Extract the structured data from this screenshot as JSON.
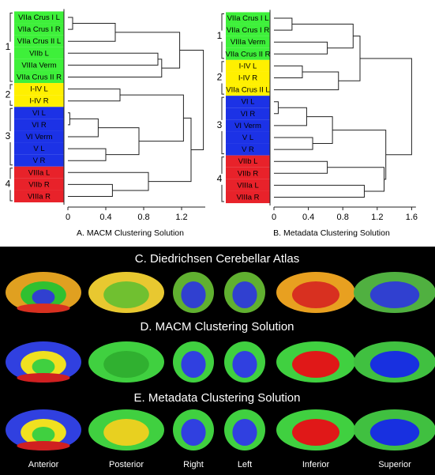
{
  "panels": [
    {
      "caption": "A. MACM Clustering Solution",
      "xlim": [
        0,
        1.45
      ],
      "xticks": [
        0,
        0.4,
        0.8,
        1.2
      ],
      "tree": {
        "height": 1.43,
        "children": [
          {
            "group": "1",
            "height": 1.18,
            "children": [
              {
                "height": 0.5,
                "children": [
                  {
                    "height": 0.05,
                    "children": [
                      {
                        "label": "VIIa Crus I L",
                        "color": "#3ef03a"
                      },
                      {
                        "label": "VIIa Crus I R",
                        "color": "#3ef03a"
                      }
                    ]
                  },
                  {
                    "label": "VIIa Crus II L",
                    "color": "#3ef03a"
                  }
                ]
              },
              {
                "height": 0.99,
                "children": [
                  {
                    "height": 0.95,
                    "children": [
                      {
                        "label": "VIIb L",
                        "color": "#3ef03a"
                      },
                      {
                        "label": "VIIIa Verm",
                        "color": "#3ef03a"
                      }
                    ]
                  },
                  {
                    "label": "VIIa Crus II R",
                    "color": "#3ef03a"
                  }
                ]
              }
            ]
          },
          {
            "height": 1.3,
            "children": [
              {
                "height": 1.22,
                "children": [
                  {
                    "group": "2",
                    "height": 0.55,
                    "children": [
                      {
                        "label": "I-IV L",
                        "color": "#fff000"
                      },
                      {
                        "label": "I-IV R",
                        "color": "#fff000"
                      }
                    ]
                  },
                  {
                    "group": "3",
                    "height": 0.75,
                    "children": [
                      {
                        "height": 0.32,
                        "children": [
                          {
                            "height": 0.02,
                            "children": [
                              {
                                "label": "VI L",
                                "color": "#1c32e6"
                              },
                              {
                                "label": "VI R",
                                "color": "#1c32e6"
                              }
                            ]
                          },
                          {
                            "label": "VI Verm",
                            "color": "#1c32e6"
                          }
                        ]
                      },
                      {
                        "height": 0.4,
                        "children": [
                          {
                            "label": "V L",
                            "color": "#1c32e6"
                          },
                          {
                            "label": "V R",
                            "color": "#1c32e6"
                          }
                        ]
                      }
                    ]
                  }
                ]
              },
              {
                "group": "4",
                "height": 0.85,
                "children": [
                  {
                    "label": "VIIIa L",
                    "color": "#e8222a"
                  },
                  {
                    "height": 0.47,
                    "children": [
                      {
                        "label": "VIIb R",
                        "color": "#e8222a"
                      },
                      {
                        "label": "VIIIa R",
                        "color": "#e8222a"
                      }
                    ]
                  }
                ]
              }
            ]
          }
        ]
      }
    },
    {
      "caption": "B. Metadata Clustering Solution",
      "xlim": [
        0,
        1.65
      ],
      "xticks": [
        0,
        0.4,
        0.8,
        1.2,
        1.6
      ],
      "tree": {
        "height": 1.6,
        "children": [
          {
            "height": 1.0,
            "children": [
              {
                "group": "1",
                "height": 0.92,
                "children": [
                  {
                    "height": 0.21,
                    "children": [
                      {
                        "label": "VIIa Crus I L",
                        "color": "#3ef03a"
                      },
                      {
                        "label": "VIIa Crus I R",
                        "color": "#3ef03a"
                      }
                    ]
                  },
                  {
                    "height": 0.62,
                    "children": [
                      {
                        "label": "VIIIa Verm",
                        "color": "#3ef03a"
                      },
                      {
                        "label": "VIIa Crus II R",
                        "color": "#3ef03a"
                      }
                    ]
                  }
                ]
              },
              {
                "group": "2",
                "height": 0.75,
                "children": [
                  {
                    "height": 0.33,
                    "children": [
                      {
                        "label": "I-IV L",
                        "color": "#fff000"
                      },
                      {
                        "label": "I-IV R",
                        "color": "#fff000"
                      }
                    ]
                  },
                  {
                    "label": "VIIa Crus II L",
                    "color": "#fff000"
                  }
                ]
              }
            ]
          },
          {
            "height": 1.3,
            "children": [
              {
                "group": "3",
                "height": 0.68,
                "children": [
                  {
                    "height": 0.38,
                    "children": [
                      {
                        "height": 0.05,
                        "children": [
                          {
                            "label": "VI L",
                            "color": "#1c32e6"
                          },
                          {
                            "label": "VI R",
                            "color": "#1c32e6"
                          }
                        ]
                      },
                      {
                        "label": "VI Verm",
                        "color": "#1c32e6"
                      }
                    ]
                  },
                  {
                    "height": 0.45,
                    "children": [
                      {
                        "label": "V L",
                        "color": "#1c32e6"
                      },
                      {
                        "label": "V R",
                        "color": "#1c32e6"
                      }
                    ]
                  }
                ]
              },
              {
                "group": "4",
                "height": 1.28,
                "children": [
                  {
                    "height": 0.62,
                    "children": [
                      {
                        "label": "VIIb L",
                        "color": "#e8222a"
                      },
                      {
                        "label": "VIIb R",
                        "color": "#e8222a"
                      }
                    ]
                  },
                  {
                    "height": 1.05,
                    "children": [
                      {
                        "label": "VIIIa L",
                        "color": "#e8222a"
                      },
                      {
                        "label": "VIIIa R",
                        "color": "#e8222a"
                      }
                    ]
                  }
                ]
              }
            ]
          }
        ]
      }
    }
  ],
  "atlas": {
    "rows": [
      "C. Diedrichsen Cerebellar Atlas",
      "D. MACM Clustering Solution",
      "E. Metadata Clustering Solution"
    ],
    "views": [
      "Anterior",
      "Posterior",
      "Right",
      "Left",
      "Inferior",
      "Superior"
    ]
  }
}
